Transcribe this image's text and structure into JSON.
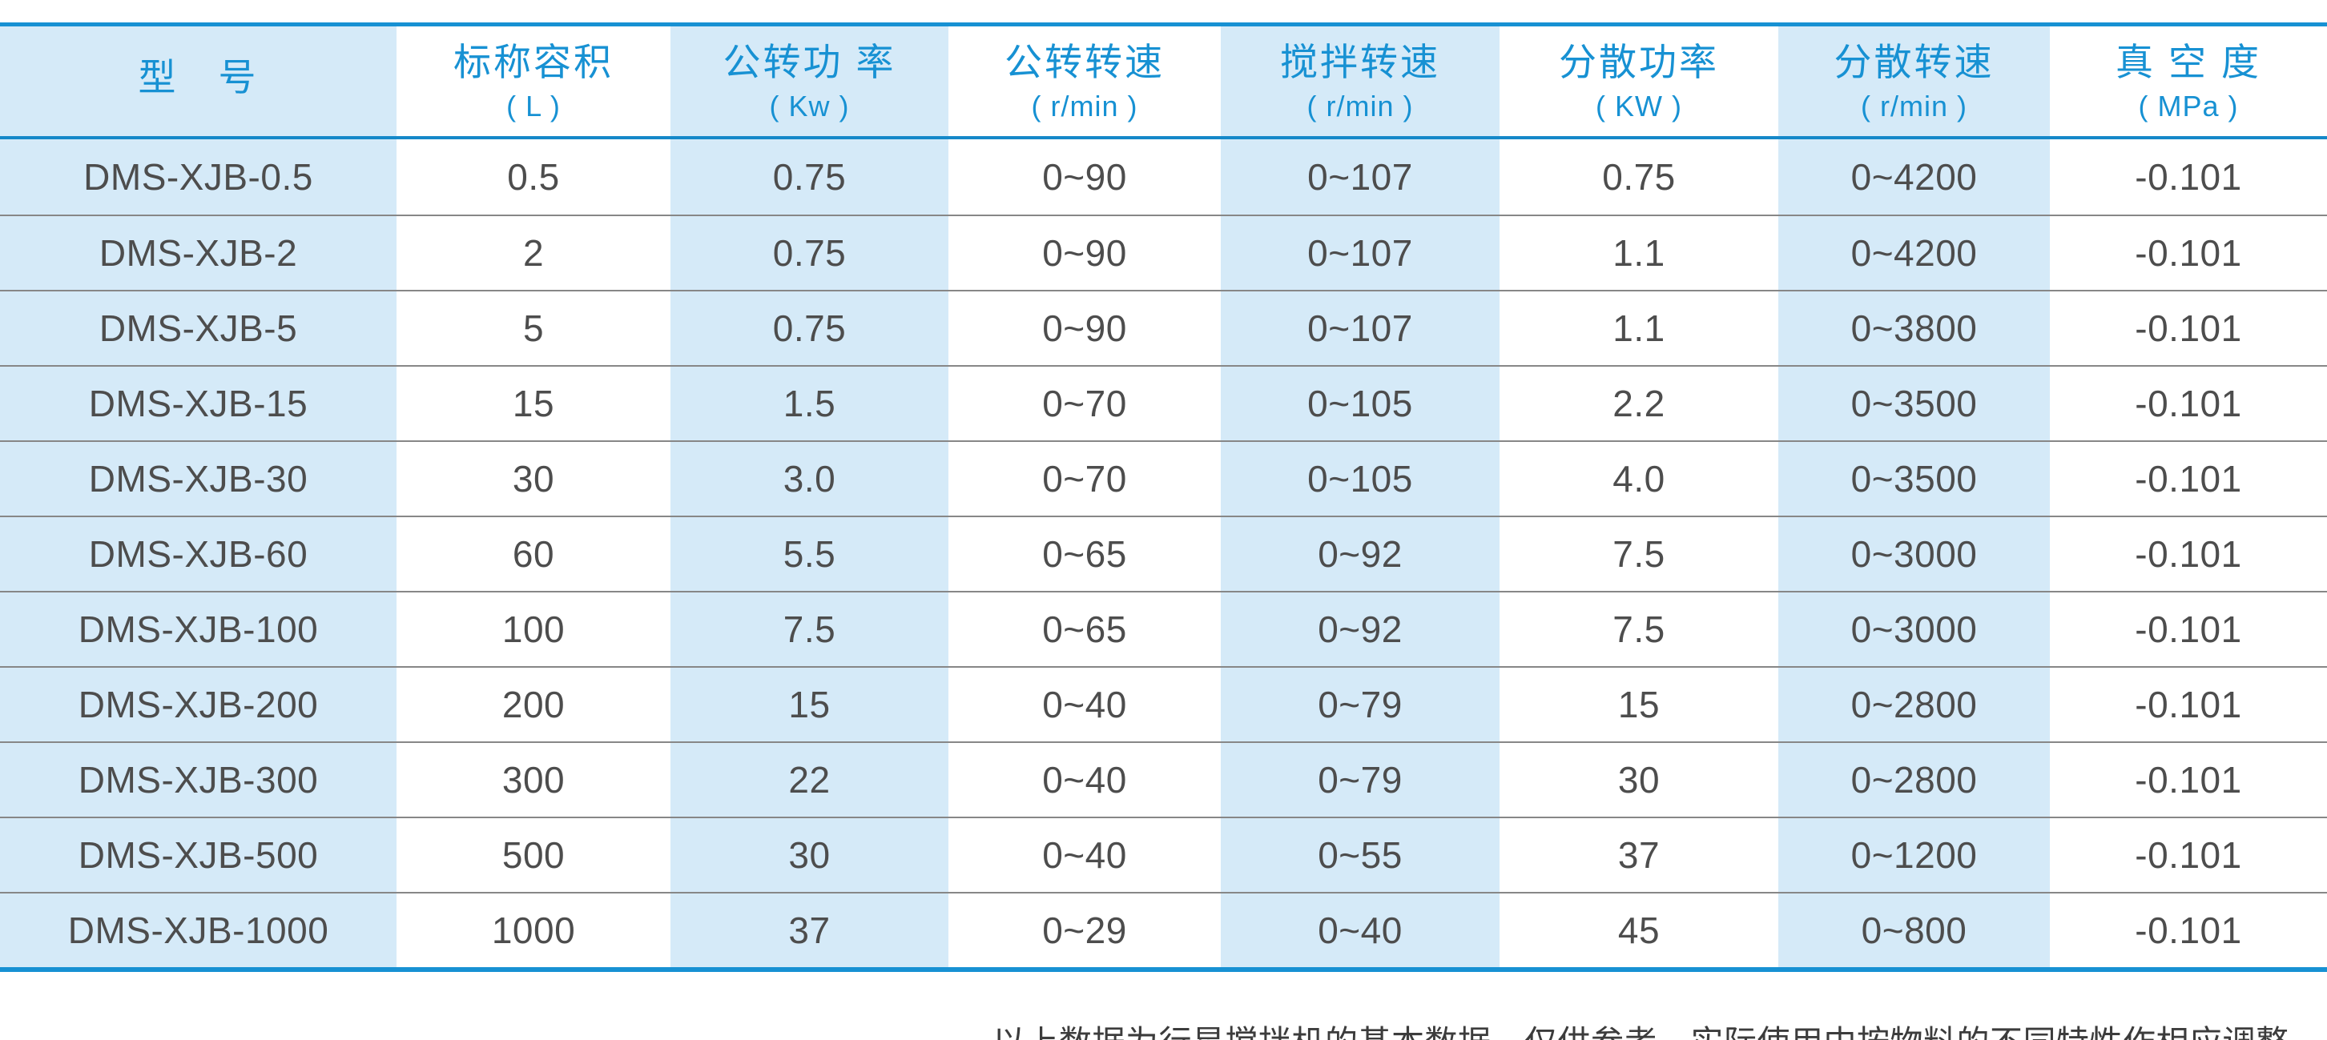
{
  "colors": {
    "accent_blue": "#1791d3",
    "header_underline_blue": "#1588c9",
    "stripe_light_blue": "#d5eaf8",
    "data_text_gray": "#4d4d4d",
    "row_separator_gray": "#878787"
  },
  "table": {
    "columns": [
      {
        "label": "型　号",
        "unit": ""
      },
      {
        "label": "标称容积",
        "unit": "( L )"
      },
      {
        "label": "公转功 率",
        "unit": "( Kw )"
      },
      {
        "label": "公转转速",
        "unit": "( r/min )"
      },
      {
        "label": "搅拌转速",
        "unit": "( r/min )"
      },
      {
        "label": "分散功率",
        "unit": "( KW )"
      },
      {
        "label": "分散转速",
        "unit": "( r/min )"
      },
      {
        "label": "真 空 度",
        "unit": "( MPa )"
      }
    ],
    "rows": [
      {
        "cells": [
          "DMS-XJB-0.5",
          "0.5",
          "0.75",
          "0~90",
          "0~107",
          "0.75",
          "0~4200",
          "-0.101"
        ]
      },
      {
        "cells": [
          "DMS-XJB-2",
          "2",
          "0.75",
          "0~90",
          "0~107",
          "1.1",
          "0~4200",
          "-0.101"
        ]
      },
      {
        "cells": [
          "DMS-XJB-5",
          "5",
          "0.75",
          "0~90",
          "0~107",
          "1.1",
          "0~3800",
          "-0.101"
        ]
      },
      {
        "cells": [
          "DMS-XJB-15",
          "15",
          "1.5",
          "0~70",
          "0~105",
          "2.2",
          "0~3500",
          "-0.101"
        ]
      },
      {
        "cells": [
          "DMS-XJB-30",
          "30",
          "3.0",
          "0~70",
          "0~105",
          "4.0",
          "0~3500",
          "-0.101"
        ]
      },
      {
        "cells": [
          "DMS-XJB-60",
          "60",
          "5.5",
          "0~65",
          "0~92",
          "7.5",
          "0~3000",
          "-0.101"
        ]
      },
      {
        "cells": [
          "DMS-XJB-100",
          "100",
          "7.5",
          "0~65",
          "0~92",
          "7.5",
          "0~3000",
          "-0.101"
        ]
      },
      {
        "cells": [
          "DMS-XJB-200",
          "200",
          "15",
          "0~40",
          "0~79",
          "15",
          "0~2800",
          "-0.101"
        ]
      },
      {
        "cells": [
          "DMS-XJB-300",
          "300",
          "22",
          "0~40",
          "0~79",
          "30",
          "0~2800",
          "-0.101"
        ]
      },
      {
        "cells": [
          "DMS-XJB-500",
          "500",
          "30",
          "0~40",
          "0~55",
          "37",
          "0~1200",
          "-0.101"
        ]
      },
      {
        "cells": [
          "DMS-XJB-1000",
          "1000",
          "37",
          "0~29",
          "0~40",
          "45",
          "0~800",
          "-0.101"
        ]
      }
    ]
  },
  "page": {
    "footnote": "以上数据为行星搅拌机的基本数据，仅供参考，实际使用中按物料的不同特性作相应调整。"
  }
}
